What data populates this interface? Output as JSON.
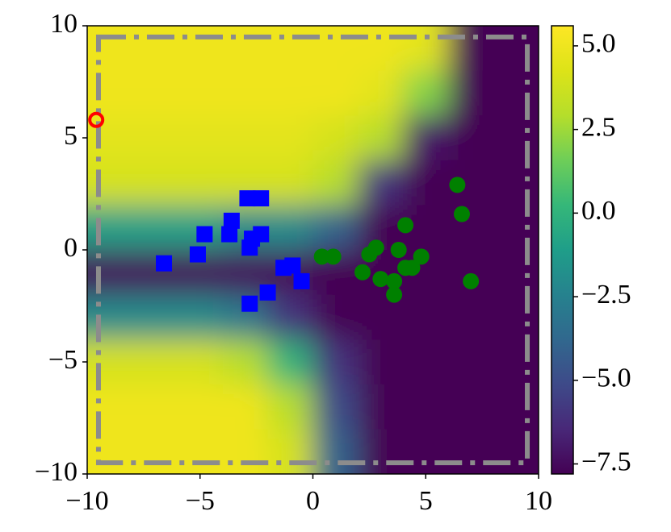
{
  "chart_data": {
    "type": "heatmap",
    "xlim": [
      -10,
      10
    ],
    "ylim": [
      -10,
      10
    ],
    "xticks": [
      {
        "value": -10,
        "label": "−10"
      },
      {
        "value": -5,
        "label": "−5"
      },
      0,
      5,
      10
    ],
    "yticks": [
      {
        "value": -10,
        "label": "−10"
      },
      {
        "value": -5,
        "label": "−5"
      },
      0,
      5,
      10
    ],
    "colormap": "viridis",
    "clim": [
      -7.8,
      5.6
    ],
    "cticks": [
      {
        "value": 5,
        "label": "5.0"
      },
      {
        "value": 2.5,
        "label": "2.5"
      },
      {
        "value": 0,
        "label": "0.0"
      },
      {
        "value": -2.5,
        "label": "−2.5"
      },
      {
        "value": -5,
        "label": "−5.0"
      },
      {
        "value": -7.5,
        "label": "−7.5"
      }
    ],
    "z": [
      [
        5,
        5,
        5,
        5,
        5,
        5,
        5,
        4.5,
        -7.8,
        -7.8
      ],
      [
        5,
        5,
        5,
        5,
        5,
        5,
        4.5,
        2,
        -7.8,
        -7.8
      ],
      [
        4.5,
        4.5,
        4.5,
        4.5,
        4.5,
        4,
        3,
        -7,
        -7.8,
        -7.8
      ],
      [
        4,
        4,
        4,
        4,
        4,
        3,
        -6,
        -7.8,
        -7.8,
        -7.8
      ],
      [
        -1,
        -1,
        -1,
        -2,
        -2,
        -4,
        -7.8,
        -7.8,
        -7.8,
        -7.8
      ],
      [
        -7.5,
        -7.5,
        -7.5,
        -7.5,
        -7.5,
        -7.8,
        -7.8,
        -7.8,
        -7.8,
        -7.8
      ],
      [
        -2,
        -2,
        -2,
        -3,
        -6,
        -7.8,
        -7.8,
        -7.8,
        -7.8,
        -7.8
      ],
      [
        4,
        4,
        4,
        3,
        0,
        -6,
        -7.8,
        -7.8,
        -7.8,
        -7.8
      ],
      [
        5,
        5,
        5,
        5,
        3,
        -5,
        -7.8,
        -7.8,
        -7.8,
        -7.8
      ],
      [
        5,
        5,
        5,
        5,
        4,
        -4,
        -7.8,
        -7.8,
        -7.8,
        -7.8
      ]
    ],
    "box": {
      "x": [
        -9.5,
        9.5
      ],
      "y": [
        -9.5,
        9.5
      ],
      "color": "#8c8c8c"
    },
    "scatter": [
      {
        "marker": "square",
        "color": "#0000ff",
        "x": [
          -6.6,
          -5.1,
          -4.8,
          -3.6,
          -3.7,
          -2.9,
          -2.3,
          -2.7,
          -2.3,
          -2.8,
          -1.3,
          -0.9,
          -0.5,
          -2.0,
          -2.8
        ],
        "y": [
          -0.6,
          -0.2,
          0.7,
          1.3,
          0.7,
          2.3,
          2.3,
          0.5,
          0.7,
          0.1,
          -0.8,
          -0.7,
          -1.4,
          -1.9,
          -2.4
        ]
      },
      {
        "marker": "circle",
        "color": "#008000",
        "x": [
          0.4,
          0.9,
          2.5,
          2.8,
          2.2,
          3.0,
          3.6,
          3.6,
          3.8,
          4.1,
          4.1,
          4.4,
          4.8,
          6.4,
          6.6,
          7.0
        ],
        "y": [
          -0.3,
          -0.3,
          -0.2,
          0.1,
          -1.0,
          -1.3,
          -1.4,
          -2.0,
          0.0,
          1.1,
          -0.8,
          -0.8,
          -0.3,
          2.9,
          1.6,
          -1.4
        ]
      },
      {
        "marker": "circle-open",
        "color": "#ff0000",
        "x": [
          -9.6
        ],
        "y": [
          5.8
        ]
      }
    ]
  }
}
